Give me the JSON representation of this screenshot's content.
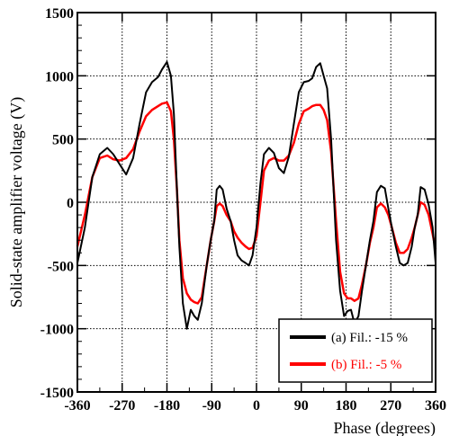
{
  "chart_data": {
    "type": "line",
    "title": "",
    "xlabel": "Phase (degrees)",
    "ylabel": "Solid-state amplifier voltage (V)",
    "xlim": [
      -360,
      360
    ],
    "ylim": [
      -1500,
      1500
    ],
    "x_ticks": [
      -360,
      -270,
      -180,
      -90,
      0,
      90,
      180,
      270,
      360
    ],
    "y_ticks": [
      -1500,
      -1000,
      -500,
      0,
      500,
      1000,
      1500
    ],
    "x_tick_labels": [
      "-360",
      "-270",
      "-180",
      "-90",
      "0",
      "90",
      "180",
      "270",
      "360"
    ],
    "y_tick_labels": [
      "-1500",
      "-1000",
      "-500",
      "0",
      "500",
      "1000",
      "1500"
    ],
    "grid": true,
    "legend_position": "bottom-right",
    "series": [
      {
        "name": "(a) Fil.: -15 %",
        "color": "#000000",
        "x": [
          -360,
          -345,
          -330,
          -315,
          -300,
          -288,
          -275,
          -262,
          -248,
          -235,
          -222,
          -210,
          -198,
          -190,
          -180,
          -172,
          -166,
          -160,
          -155,
          -148,
          -140,
          -132,
          -125,
          -118,
          -110,
          -100,
          -92,
          -85,
          -80,
          -74,
          -68,
          -60,
          -52,
          -45,
          -38,
          -30,
          -22,
          -15,
          -8,
          0,
          8,
          15,
          25,
          35,
          45,
          55,
          65,
          75,
          85,
          95,
          105,
          112,
          120,
          128,
          135,
          142,
          150,
          160,
          168,
          176,
          183,
          190,
          197,
          205,
          212,
          220,
          228,
          235,
          242,
          250,
          258,
          265,
          272,
          280,
          288,
          296,
          304,
          312,
          318,
          324,
          330,
          338,
          346,
          354,
          360
        ],
        "y": [
          -480,
          -200,
          200,
          380,
          430,
          380,
          300,
          220,
          350,
          620,
          870,
          950,
          990,
          1050,
          1110,
          1000,
          700,
          100,
          -350,
          -800,
          -1000,
          -850,
          -900,
          -930,
          -800,
          -500,
          -300,
          -150,
          100,
          130,
          100,
          -50,
          -150,
          -300,
          -420,
          -460,
          -480,
          -500,
          -420,
          -200,
          150,
          380,
          430,
          390,
          270,
          230,
          360,
          620,
          870,
          950,
          960,
          980,
          1070,
          1100,
          1000,
          900,
          500,
          -300,
          -700,
          -900,
          -860,
          -850,
          -960,
          -900,
          -700,
          -500,
          -300,
          -150,
          80,
          130,
          110,
          -50,
          -200,
          -350,
          -480,
          -500,
          -480,
          -350,
          -200,
          -100,
          120,
          100,
          -20,
          -200,
          -480
        ]
      },
      {
        "name": "(b) Fil.: -5 %",
        "color": "#ff0000",
        "x": [
          -360,
          -345,
          -330,
          -315,
          -300,
          -288,
          -275,
          -262,
          -248,
          -235,
          -222,
          -210,
          -198,
          -190,
          -180,
          -172,
          -166,
          -160,
          -155,
          -148,
          -140,
          -132,
          -125,
          -118,
          -110,
          -100,
          -92,
          -85,
          -80,
          -74,
          -68,
          -60,
          -52,
          -45,
          -38,
          -30,
          -22,
          -15,
          -8,
          0,
          8,
          15,
          25,
          35,
          45,
          55,
          65,
          75,
          85,
          95,
          105,
          112,
          120,
          128,
          135,
          142,
          150,
          160,
          168,
          176,
          183,
          190,
          197,
          205,
          212,
          220,
          228,
          235,
          242,
          250,
          258,
          265,
          272,
          280,
          288,
          296,
          304,
          312,
          318,
          324,
          330,
          338,
          346,
          354,
          360
        ],
        "y": [
          -350,
          -100,
          200,
          350,
          370,
          340,
          330,
          350,
          420,
          560,
          680,
          730,
          760,
          780,
          790,
          720,
          500,
          100,
          -300,
          -600,
          -720,
          -770,
          -790,
          -800,
          -750,
          -500,
          -300,
          -150,
          -30,
          -10,
          -30,
          -100,
          -150,
          -230,
          -280,
          -320,
          -350,
          -370,
          -360,
          -270,
          0,
          250,
          330,
          350,
          330,
          330,
          370,
          470,
          620,
          720,
          740,
          760,
          770,
          770,
          730,
          650,
          400,
          -150,
          -550,
          -720,
          -760,
          -760,
          -780,
          -760,
          -650,
          -500,
          -320,
          -200,
          -40,
          -10,
          -40,
          -100,
          -200,
          -320,
          -400,
          -400,
          -370,
          -280,
          -200,
          -100,
          0,
          -20,
          -100,
          -250,
          -370
        ]
      }
    ]
  }
}
